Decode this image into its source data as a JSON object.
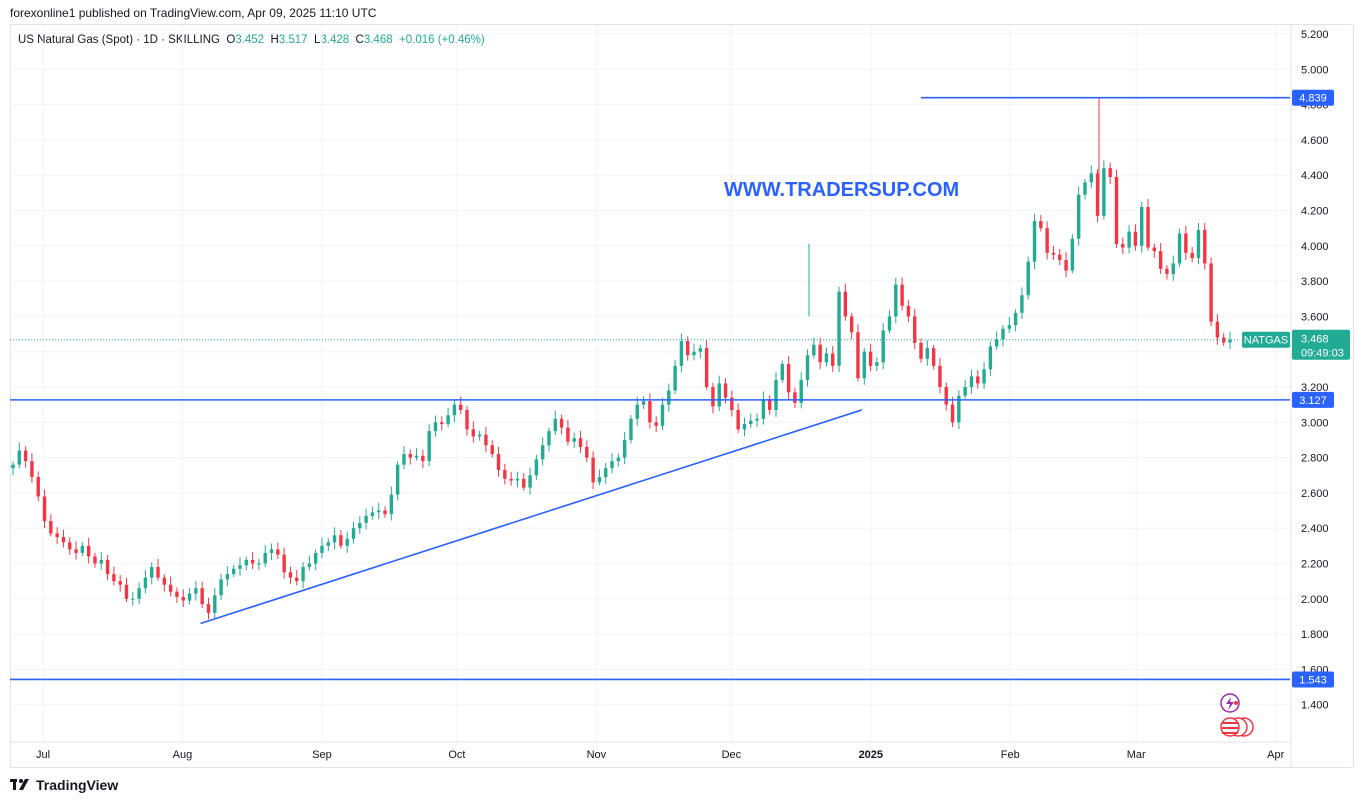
{
  "header": {
    "publisher_line": "forexonline1 published on TradingView.com, Apr 09, 2025 11:10 UTC"
  },
  "legend": {
    "symbol": "US Natural Gas (Spot) · 1D · SKILLING",
    "open_label": "O",
    "open": "3.452",
    "high_label": "H",
    "high": "3.517",
    "low_label": "L",
    "low": "3.428",
    "close_label": "C",
    "close": "3.468",
    "change": "+0.016 (+0.46%)"
  },
  "watermark": "WWW.TRADERSUP.COM",
  "footer": {
    "brand": "TradingView"
  },
  "colors": {
    "up": "#22ab94",
    "down": "#f23645",
    "line": "#2962ff"
  },
  "chart_data": {
    "type": "candlestick",
    "y_ticks": [
      "5.200",
      "5.000",
      "4.800",
      "4.600",
      "4.400",
      "4.200",
      "4.000",
      "3.800",
      "3.600",
      "3.400",
      "3.200",
      "3.000",
      "2.800",
      "2.600",
      "2.400",
      "2.200",
      "2.000",
      "1.800",
      "1.600",
      "1.400"
    ],
    "x_ticks": [
      {
        "label": "Jul",
        "bold": false
      },
      {
        "label": "Aug",
        "bold": false
      },
      {
        "label": "Sep",
        "bold": false
      },
      {
        "label": "Oct",
        "bold": false
      },
      {
        "label": "Nov",
        "bold": false
      },
      {
        "label": "Dec",
        "bold": false
      },
      {
        "label": "2025",
        "bold": true
      },
      {
        "label": "Feb",
        "bold": false
      },
      {
        "label": "Mar",
        "bold": false
      },
      {
        "label": "Apr",
        "bold": false
      }
    ],
    "horizontal_levels": [
      {
        "label": "4.839",
        "value": 4.839
      },
      {
        "label": "3.127",
        "value": 3.127
      },
      {
        "label": "1.543",
        "value": 1.543
      }
    ],
    "trendline": {
      "start": {
        "date": "2024-08-05",
        "value": 1.86
      },
      "end": {
        "date": "2024-12-30",
        "value": 3.07
      }
    },
    "last_price": {
      "symbol": "NATGAS",
      "value": "3.468",
      "countdown": "09:49:03"
    },
    "closes": [
      2.76,
      2.84,
      2.78,
      2.69,
      2.58,
      2.44,
      2.37,
      2.35,
      2.32,
      2.28,
      2.26,
      2.3,
      2.24,
      2.2,
      2.22,
      2.14,
      2.1,
      2.08,
      2.0,
      2.0,
      2.06,
      2.12,
      2.18,
      2.12,
      2.08,
      2.04,
      2.01,
      1.99,
      2.03,
      2.06,
      1.97,
      1.92,
      2.02,
      2.11,
      2.14,
      2.17,
      2.19,
      2.22,
      2.2,
      2.2,
      2.26,
      2.28,
      2.25,
      2.15,
      2.12,
      2.1,
      2.18,
      2.2,
      2.26,
      2.3,
      2.32,
      2.36,
      2.3,
      2.34,
      2.4,
      2.43,
      2.47,
      2.49,
      2.5,
      2.48,
      2.59,
      2.76,
      2.82,
      2.8,
      2.81,
      2.78,
      2.95,
      3.0,
      2.99,
      3.04,
      3.1,
      3.07,
      2.96,
      2.92,
      2.93,
      2.87,
      2.82,
      2.73,
      2.68,
      2.67,
      2.68,
      2.63,
      2.7,
      2.79,
      2.87,
      2.95,
      3.02,
      2.97,
      2.89,
      2.91,
      2.86,
      2.8,
      2.66,
      2.69,
      2.74,
      2.78,
      2.8,
      2.9,
      3.02,
      3.1,
      3.12,
      3.0,
      2.98,
      3.1,
      3.18,
      3.32,
      3.46,
      3.38,
      3.4,
      3.42,
      3.2,
      3.09,
      3.22,
      3.14,
      3.07,
      2.96,
      2.99,
      3.01,
      3.02,
      3.13,
      3.07,
      3.24,
      3.33,
      3.17,
      3.11,
      3.24,
      3.38,
      3.44,
      3.34,
      3.39,
      3.32,
      3.74,
      3.6,
      3.51,
      3.25,
      3.4,
      3.32,
      3.34,
      3.52,
      3.6,
      3.78,
      3.66,
      3.6,
      3.45,
      3.36,
      3.42,
      3.32,
      3.2,
      3.1,
      3.0,
      3.15,
      3.2,
      3.26,
      3.22,
      3.3,
      3.43,
      3.47,
      3.53,
      3.55,
      3.62,
      3.72,
      3.91,
      4.14,
      4.1,
      3.96,
      3.95,
      3.92,
      3.86,
      4.04,
      4.29,
      4.36,
      4.41,
      4.17,
      4.44,
      4.39,
      4.01,
      3.99,
      4.08,
      4.0,
      4.22,
      3.99,
      3.97,
      3.87,
      3.84,
      3.9,
      4.07,
      3.96,
      3.93,
      4.09,
      3.9,
      3.57,
      3.48,
      3.452,
      3.468
    ],
    "title": ""
  }
}
